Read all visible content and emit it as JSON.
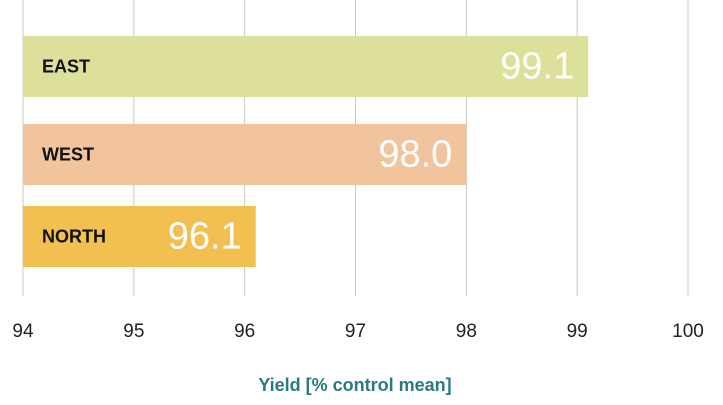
{
  "chart_data": {
    "type": "bar",
    "orientation": "horizontal",
    "categories": [
      "EAST",
      "WEST",
      "NORTH"
    ],
    "values": [
      99.1,
      98.0,
      96.1
    ],
    "value_labels": [
      "99.1",
      "98.0",
      "96.1"
    ],
    "colors": [
      "#dde09a",
      "#f1c49e",
      "#f1c050"
    ],
    "xlabel": "Yield [% control mean]",
    "xlim": [
      94,
      100
    ],
    "xticks": [
      94,
      95,
      96,
      97,
      98,
      99,
      100
    ],
    "grid": true
  }
}
